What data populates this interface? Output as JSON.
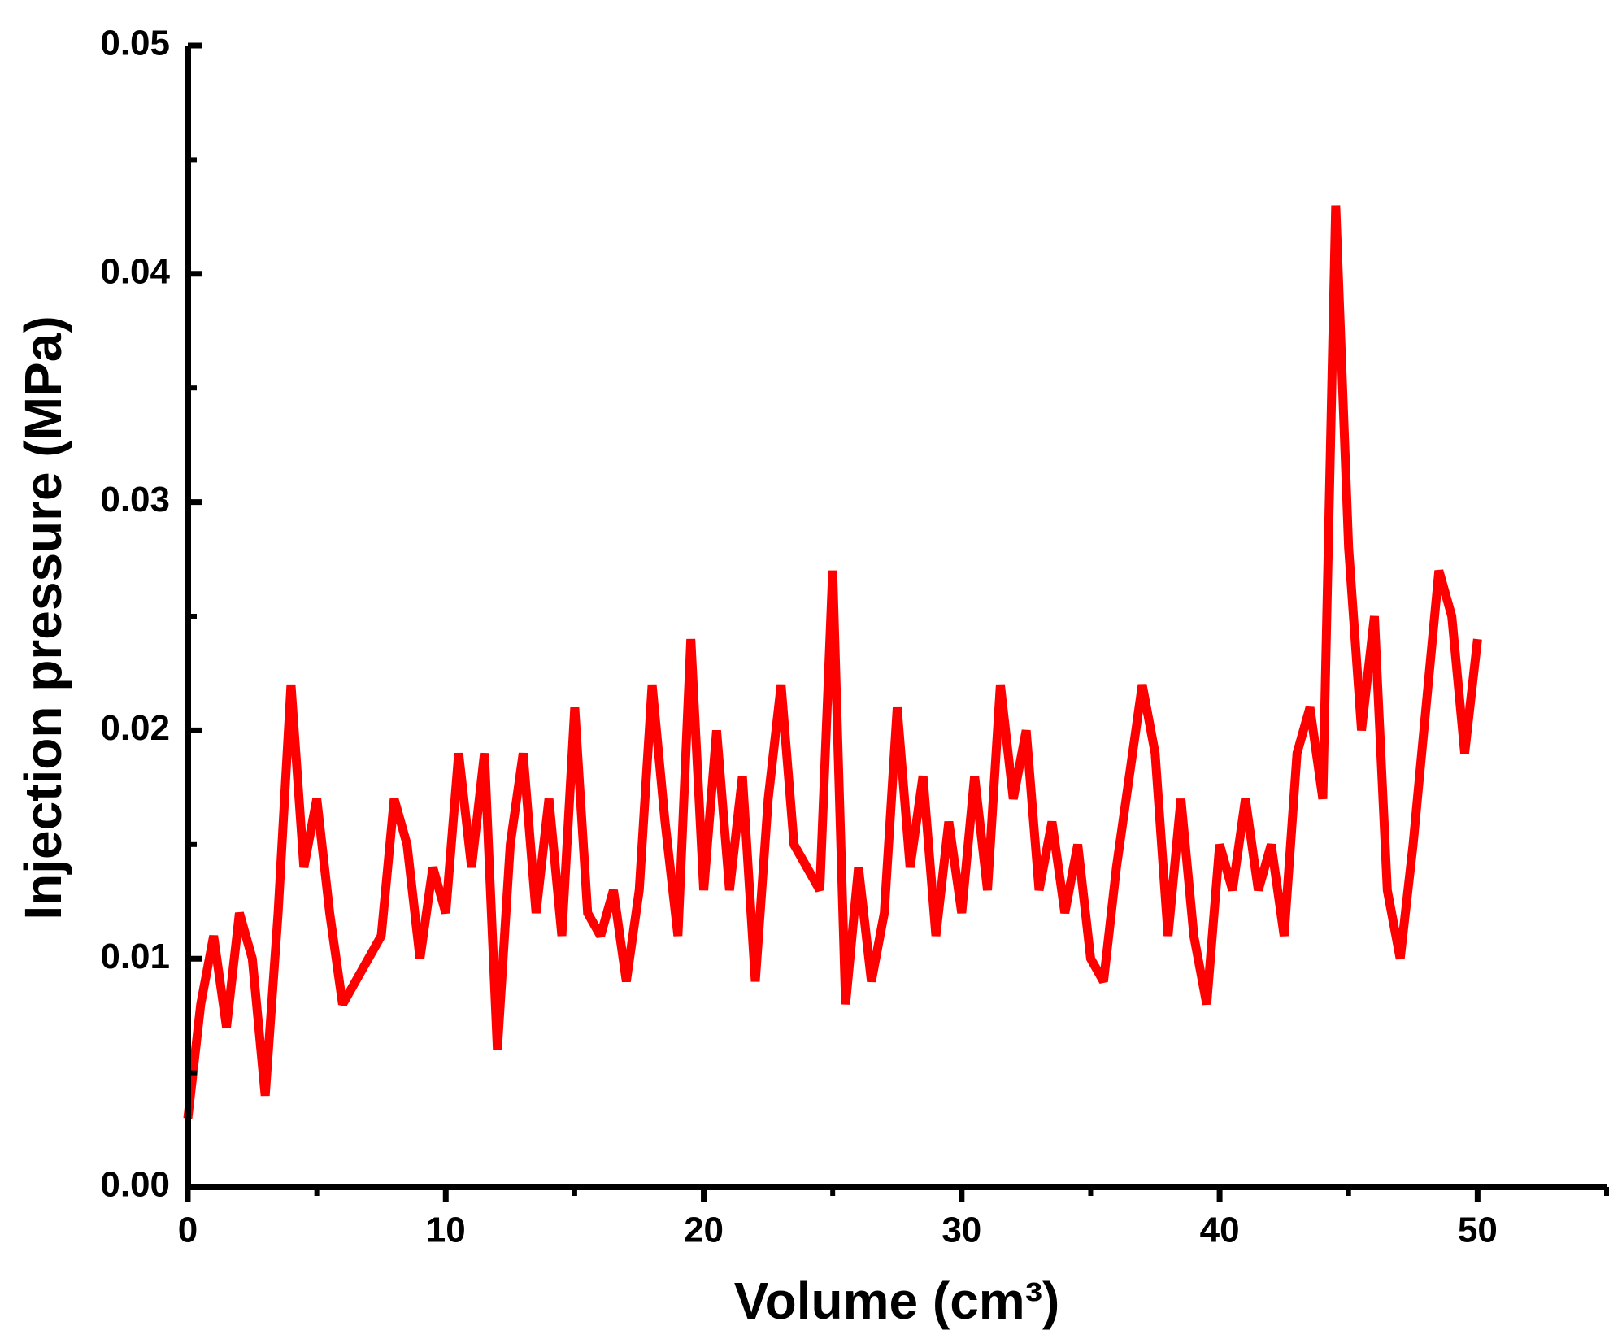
{
  "chart_data": {
    "type": "line",
    "x_label": "Volume (cm³)",
    "y_label": "Injection pressure (MPa)",
    "x": [
      0,
      0.5,
      1,
      1.5,
      2,
      2.5,
      3,
      3.5,
      4,
      4.5,
      5,
      5.5,
      6,
      6.5,
      7,
      7.5,
      8,
      8.5,
      9,
      9.5,
      10,
      10.5,
      11,
      11.5,
      12,
      12.5,
      13,
      13.5,
      14,
      14.5,
      15,
      15.5,
      16,
      16.5,
      17,
      17.5,
      18,
      18.5,
      19,
      19.5,
      20,
      20.5,
      21,
      21.5,
      22,
      22.5,
      23,
      23.5,
      24,
      24.5,
      25,
      25.5,
      26,
      26.5,
      27,
      27.5,
      28,
      28.5,
      29,
      29.5,
      30,
      30.5,
      31,
      31.5,
      32,
      32.5,
      33,
      33.5,
      34,
      34.5,
      35,
      35.5,
      36,
      36.5,
      37,
      37.5,
      38,
      38.5,
      39,
      39.5,
      40,
      40.5,
      41,
      41.5,
      42,
      42.5,
      43,
      43.5,
      44,
      44.5,
      45,
      45.5,
      46,
      46.5,
      47,
      47.5,
      48,
      48.5,
      49,
      49.5,
      50
    ],
    "series": [
      {
        "color": "#ff0000",
        "values": [
          0.003,
          0.008,
          0.011,
          0.007,
          0.012,
          0.01,
          0.004,
          0.012,
          0.022,
          0.014,
          0.017,
          0.012,
          0.008,
          0.009,
          0.01,
          0.011,
          0.017,
          0.015,
          0.01,
          0.014,
          0.012,
          0.019,
          0.014,
          0.019,
          0.006,
          0.015,
          0.019,
          0.012,
          0.017,
          0.011,
          0.021,
          0.012,
          0.011,
          0.013,
          0.009,
          0.013,
          0.022,
          0.016,
          0.011,
          0.024,
          0.013,
          0.02,
          0.013,
          0.018,
          0.009,
          0.017,
          0.022,
          0.015,
          0.014,
          0.013,
          0.027,
          0.008,
          0.014,
          0.009,
          0.012,
          0.021,
          0.014,
          0.018,
          0.011,
          0.016,
          0.012,
          0.018,
          0.013,
          0.022,
          0.017,
          0.02,
          0.013,
          0.016,
          0.012,
          0.015,
          0.01,
          0.009,
          0.014,
          0.018,
          0.022,
          0.019,
          0.011,
          0.017,
          0.011,
          0.008,
          0.015,
          0.013,
          0.017,
          0.013,
          0.015,
          0.011,
          0.019,
          0.021,
          0.017,
          0.043,
          0.028,
          0.02,
          0.025,
          0.013,
          0.01,
          0.015,
          0.021,
          0.027,
          0.025,
          0.019,
          0.024
        ]
      }
    ],
    "xlim": [
      0,
      55
    ],
    "ylim": [
      0,
      0.05
    ],
    "xticks": [
      0,
      10,
      20,
      30,
      40,
      50
    ],
    "yticks": [
      {
        "value": 0,
        "label": "0.00"
      },
      0.01,
      0.02,
      0.03,
      0.04,
      0.05
    ],
    "minor_xticks": [
      5,
      15,
      25,
      35,
      45,
      55
    ],
    "minor_yticks": [
      0.005,
      0.015,
      0.025,
      0.035,
      0.045
    ]
  }
}
